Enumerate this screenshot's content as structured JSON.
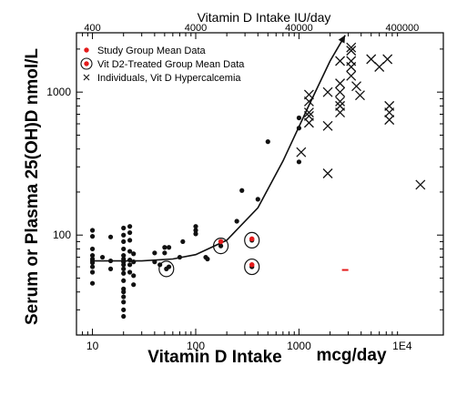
{
  "chart_data": {
    "type": "scatter",
    "title": "",
    "xlabel": "Vitamin D Intake",
    "xunit": "mcg/day",
    "ylabel": "Serum or Plasma 25(OH)D  nmol/L",
    "top_axis_title": "Vitamin D Intake  IU/day",
    "x_scale": "log",
    "y_scale": "log",
    "xlim": [
      7,
      25000
    ],
    "ylim": [
      20,
      2600
    ],
    "x_ticks": [
      {
        "value": 10,
        "label": "10"
      },
      {
        "value": 100,
        "label": "100"
      },
      {
        "value": 1000,
        "label": "1000"
      },
      {
        "value": 10000,
        "label": "1E4"
      }
    ],
    "y_ticks": [
      {
        "value": 100,
        "label": "100"
      },
      {
        "value": 1000,
        "label": "1000"
      }
    ],
    "top_ticks": [
      {
        "value": 400,
        "label": "400"
      },
      {
        "value": 4000,
        "label": "4000"
      },
      {
        "value": 40000,
        "label": "40000"
      },
      {
        "value": 400000,
        "label": "400000"
      }
    ],
    "legend": [
      {
        "marker": "red-dot",
        "label": "Study Group Mean Data"
      },
      {
        "marker": "circled-red-dot",
        "label": "Vit D2-Treated Group Mean Data"
      },
      {
        "marker": "x",
        "label": "Individuals, Vit D Hypercalcemia"
      }
    ],
    "series": [
      {
        "name": "Study Group Mean Data",
        "marker": "dot",
        "points": [
          [
            10,
            108
          ],
          [
            10,
            98
          ],
          [
            10,
            80
          ],
          [
            10,
            72
          ],
          [
            10,
            68
          ],
          [
            10,
            66
          ],
          [
            10,
            64
          ],
          [
            10,
            60
          ],
          [
            10,
            55
          ],
          [
            10,
            46
          ],
          [
            12.5,
            70
          ],
          [
            15,
            97
          ],
          [
            15,
            66
          ],
          [
            15,
            58
          ],
          [
            20,
            112
          ],
          [
            20,
            100
          ],
          [
            20,
            90
          ],
          [
            20,
            80
          ],
          [
            20,
            72
          ],
          [
            20,
            68
          ],
          [
            20,
            65
          ],
          [
            20,
            62
          ],
          [
            20,
            58
          ],
          [
            20,
            54
          ],
          [
            20,
            48
          ],
          [
            20,
            42
          ],
          [
            20,
            40
          ],
          [
            20,
            37
          ],
          [
            20,
            34
          ],
          [
            20,
            30
          ],
          [
            20,
            27
          ],
          [
            23,
            115
          ],
          [
            23,
            104
          ],
          [
            23,
            92
          ],
          [
            23,
            77
          ],
          [
            23,
            67
          ],
          [
            23,
            62
          ],
          [
            23,
            55
          ],
          [
            25,
            74
          ],
          [
            25,
            65
          ],
          [
            25,
            52
          ],
          [
            25,
            45
          ],
          [
            40,
            75
          ],
          [
            40,
            65
          ],
          [
            45,
            62
          ],
          [
            50,
            82
          ],
          [
            50,
            75
          ],
          [
            55,
            82
          ],
          [
            55,
            60
          ],
          [
            70,
            70
          ],
          [
            75,
            90
          ],
          [
            100,
            115
          ],
          [
            100,
            108
          ],
          [
            100,
            102
          ],
          [
            125,
            70
          ],
          [
            130,
            68
          ],
          [
            250,
            125
          ],
          [
            280,
            205
          ],
          [
            400,
            178
          ],
          [
            500,
            450
          ],
          [
            1000,
            660
          ],
          [
            1000,
            560
          ],
          [
            1000,
            325
          ]
        ]
      },
      {
        "name": "Vit D2-Treated Group Mean Data",
        "marker": "circled-dot",
        "points": [
          [
            52,
            58
          ],
          [
            175,
            84
          ],
          [
            350,
            92
          ],
          [
            350,
            60
          ]
        ],
        "red_points": [
          [
            175,
            90
          ],
          [
            350,
            94
          ],
          [
            350,
            62
          ]
        ]
      },
      {
        "name": "Individuals, Vit D Hypercalcemia",
        "marker": "x",
        "points": [
          [
            1050,
            380
          ],
          [
            1250,
            960
          ],
          [
            1250,
            860
          ],
          [
            1250,
            720
          ],
          [
            1250,
            680
          ],
          [
            1250,
            610
          ],
          [
            1900,
            1000
          ],
          [
            1900,
            580
          ],
          [
            1900,
            270
          ],
          [
            2500,
            1650
          ],
          [
            2500,
            1150
          ],
          [
            2500,
            1000
          ],
          [
            2500,
            860
          ],
          [
            2500,
            800
          ],
          [
            2500,
            720
          ],
          [
            3200,
            2050
          ],
          [
            3200,
            1950
          ],
          [
            3200,
            1650
          ],
          [
            3200,
            1500
          ],
          [
            3200,
            1300
          ],
          [
            3600,
            1100
          ],
          [
            3900,
            950
          ],
          [
            5000,
            1700
          ],
          [
            6000,
            1500
          ],
          [
            7200,
            1700
          ],
          [
            7500,
            800
          ],
          [
            7500,
            720
          ],
          [
            7500,
            640
          ],
          [
            15000,
            225
          ]
        ]
      },
      {
        "name": "",
        "marker": "dash",
        "points": [
          [
            2800,
            57
          ]
        ]
      }
    ],
    "trend_curve": [
      [
        10,
        66
      ],
      [
        30,
        66
      ],
      [
        60,
        68
      ],
      [
        100,
        73
      ],
      [
        200,
        92
      ],
      [
        400,
        155
      ],
      [
        700,
        330
      ],
      [
        1200,
        760
      ],
      [
        2000,
        1650
      ],
      [
        2800,
        2500
      ]
    ],
    "colors": {
      "marker": "#111111",
      "red": "#e41b1b",
      "axis": "#000000",
      "background": "#ffffff"
    }
  }
}
